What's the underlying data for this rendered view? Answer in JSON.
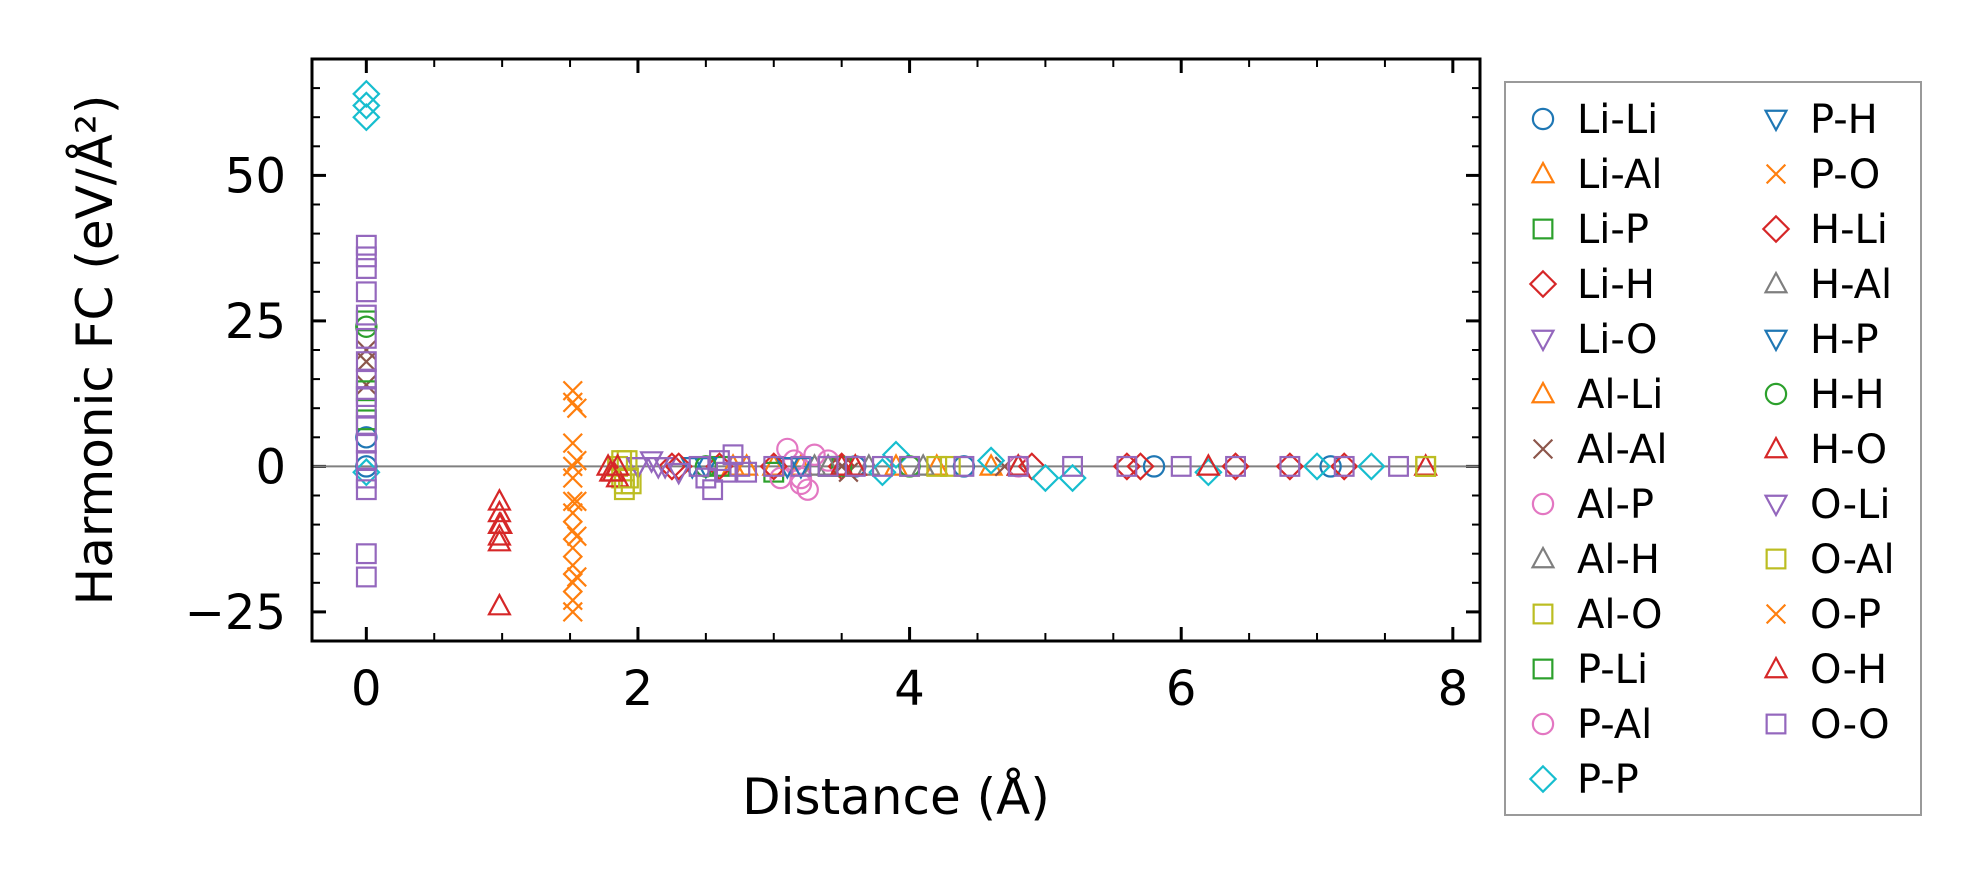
{
  "chart_data": {
    "type": "scatter",
    "title": "",
    "xlabel": "Distance (Å)",
    "ylabel": "Harmonic FC (eV/Å²)",
    "xlim": [
      -0.4,
      8.2
    ],
    "ylim": [
      -30,
      70
    ],
    "xticks": [
      0,
      2,
      4,
      6,
      8
    ],
    "xtick_labels": [
      "0",
      "2",
      "4",
      "6",
      "8"
    ],
    "yticks": [
      -25,
      0,
      25,
      50
    ],
    "ytick_labels": [
      "−25",
      "0",
      "25",
      "50"
    ],
    "x_minor_step": 0.5,
    "y_minor_step": 5,
    "zero_line": true,
    "grid": false,
    "legend_position": "right-outside",
    "legend_columns": 2,
    "series": [
      {
        "name": "Li-Li",
        "marker": "circle",
        "color": "#1f77b4",
        "x": [
          0,
          0,
          3.6,
          4.4,
          5.8,
          7.1
        ],
        "y": [
          0,
          5,
          0,
          0,
          0,
          0
        ]
      },
      {
        "name": "Li-Al",
        "marker": "triangle-up",
        "color": "#ff7f0e",
        "x": [
          2.7,
          3.0,
          3.6,
          4.2
        ],
        "y": [
          0,
          0,
          0,
          0
        ]
      },
      {
        "name": "Li-P",
        "marker": "square",
        "color": "#2ca02c",
        "x": [
          2.6,
          3.0,
          3.4
        ],
        "y": [
          0,
          -1,
          0
        ]
      },
      {
        "name": "Li-H",
        "marker": "diamond",
        "color": "#d62728",
        "x": [
          2.25,
          2.6,
          3.5,
          4.9,
          5.6,
          6.4,
          7.2
        ],
        "y": [
          0,
          0,
          0,
          0,
          0,
          0,
          0
        ]
      },
      {
        "name": "Li-O",
        "marker": "triangle-down",
        "color": "#9467bd",
        "x": [
          2.0,
          2.1,
          2.2
        ],
        "y": [
          0,
          1,
          0
        ]
      },
      {
        "name": "Al-Li",
        "marker": "triangle-up",
        "color": "#ff7f0e",
        "x": [
          2.8,
          3.2,
          3.9,
          4.6
        ],
        "y": [
          0,
          0,
          0,
          0
        ]
      },
      {
        "name": "Al-Al",
        "marker": "x",
        "color": "#8c564b",
        "x": [
          0,
          0,
          0,
          3.5,
          3.55,
          4.7
        ],
        "y": [
          20,
          18,
          14,
          0,
          -1,
          0
        ]
      },
      {
        "name": "Al-P",
        "marker": "circle",
        "color": "#e377c2",
        "x": [
          3.1,
          3.15,
          3.2,
          3.25,
          3.3
        ],
        "y": [
          3,
          1,
          -2,
          -4,
          2
        ]
      },
      {
        "name": "Al-H",
        "marker": "triangle-up",
        "color": "#7f7f7f",
        "x": [
          3.3,
          3.7,
          4.8
        ],
        "y": [
          0,
          0,
          0
        ]
      },
      {
        "name": "Al-O",
        "marker": "square",
        "color": "#bcbd22",
        "x": [
          1.85,
          1.88,
          1.9,
          1.92,
          1.95,
          4.0,
          4.3,
          7.8
        ],
        "y": [
          0,
          -2,
          -4,
          1,
          -3,
          0,
          0,
          0
        ]
      },
      {
        "name": "P-Li",
        "marker": "square",
        "color": "#2ca02c",
        "x": [
          0,
          0,
          0,
          3.5
        ],
        "y": [
          25,
          13,
          8,
          0
        ]
      },
      {
        "name": "P-Al",
        "marker": "circle",
        "color": "#e377c2",
        "x": [
          3.05,
          3.2,
          3.4,
          4.8
        ],
        "y": [
          -2,
          -3,
          1,
          0
        ]
      },
      {
        "name": "P-P",
        "marker": "diamond",
        "color": "#17becf",
        "x": [
          0,
          0,
          0,
          0,
          3.8,
          3.9,
          4.6,
          5.0,
          5.2,
          6.2,
          7.0,
          7.4
        ],
        "y": [
          64,
          62,
          60,
          -1,
          -1,
          2,
          1,
          -2,
          -2,
          -1,
          0,
          0
        ]
      },
      {
        "name": "P-H",
        "marker": "triangle-down",
        "color": "#1f77b4",
        "x": [
          2.4,
          3.1
        ],
        "y": [
          0,
          0
        ]
      },
      {
        "name": "P-O",
        "marker": "x",
        "color": "#ff7f0e",
        "x": [
          1.52,
          1.52,
          1.52,
          1.52,
          1.52,
          1.52,
          1.52,
          1.52,
          1.52,
          1.52,
          1.52,
          1.52,
          1.52
        ],
        "y": [
          13,
          11,
          4,
          0,
          -2,
          -6,
          -8,
          -11,
          -14,
          -17,
          -20,
          -23,
          -25
        ]
      },
      {
        "name": "H-Li",
        "marker": "diamond",
        "color": "#d62728",
        "x": [
          2.3,
          3.0,
          5.7,
          6.8
        ],
        "y": [
          0,
          0,
          0,
          0
        ]
      },
      {
        "name": "H-Al",
        "marker": "triangle-up",
        "color": "#7f7f7f",
        "x": [
          3.4,
          4.1
        ],
        "y": [
          0,
          0
        ]
      },
      {
        "name": "H-P",
        "marker": "triangle-down",
        "color": "#1f77b4",
        "x": [
          2.5,
          3.2
        ],
        "y": [
          0,
          0
        ]
      },
      {
        "name": "H-H",
        "marker": "circle",
        "color": "#2ca02c",
        "x": [
          0,
          2.5,
          4.0
        ],
        "y": [
          24,
          0,
          0
        ]
      },
      {
        "name": "H-O",
        "marker": "triangle-up",
        "color": "#d62728",
        "x": [
          0.98,
          0.98,
          0.98,
          0.98,
          0.98,
          0.98,
          1.78,
          1.82,
          1.85,
          3.6,
          4.8,
          6.2,
          7.8
        ],
        "y": [
          -6,
          -8,
          -10,
          -12,
          -13,
          -24,
          0,
          -1,
          -2,
          0,
          0,
          0,
          0
        ]
      },
      {
        "name": "O-Li",
        "marker": "triangle-down",
        "color": "#9467bd",
        "x": [
          2.0,
          2.15,
          2.3
        ],
        "y": [
          0,
          0,
          -1
        ]
      },
      {
        "name": "O-Al",
        "marker": "square",
        "color": "#bcbd22",
        "x": [
          1.88,
          1.9,
          1.93,
          4.2,
          7.8
        ],
        "y": [
          1,
          -3,
          -2,
          0,
          0
        ]
      },
      {
        "name": "O-P",
        "marker": "x",
        "color": "#ff7f0e",
        "x": [
          1.55,
          1.55,
          1.55,
          1.55,
          1.55
        ],
        "y": [
          10,
          1,
          -6,
          -12,
          -19
        ]
      },
      {
        "name": "O-H",
        "marker": "triangle-up",
        "color": "#d62728",
        "x": [
          0.99,
          1.8,
          1.85,
          3.5
        ],
        "y": [
          -10,
          -1,
          0,
          0
        ]
      },
      {
        "name": "O-O",
        "marker": "square",
        "color": "#9467bd",
        "x": [
          0,
          0,
          0,
          0,
          0,
          0,
          0,
          0,
          0,
          0,
          0,
          0,
          0,
          0,
          0,
          0,
          0,
          2.45,
          2.5,
          2.55,
          2.6,
          2.65,
          2.7,
          2.75,
          2.8,
          3.0,
          3.2,
          3.4,
          3.6,
          3.8,
          4.0,
          4.4,
          4.8,
          5.2,
          5.6,
          6.0,
          6.4,
          6.8,
          7.2,
          7.6
        ],
        "y": [
          38,
          36,
          34,
          30,
          26,
          22,
          18,
          15,
          12,
          10,
          7,
          4,
          1,
          -2,
          -4,
          -15,
          -19,
          0,
          -2,
          -4,
          1,
          -1,
          2,
          0,
          -1,
          0,
          0,
          0,
          0,
          0,
          0,
          0,
          0,
          0,
          0,
          0,
          0,
          0,
          0,
          0
        ]
      }
    ]
  }
}
